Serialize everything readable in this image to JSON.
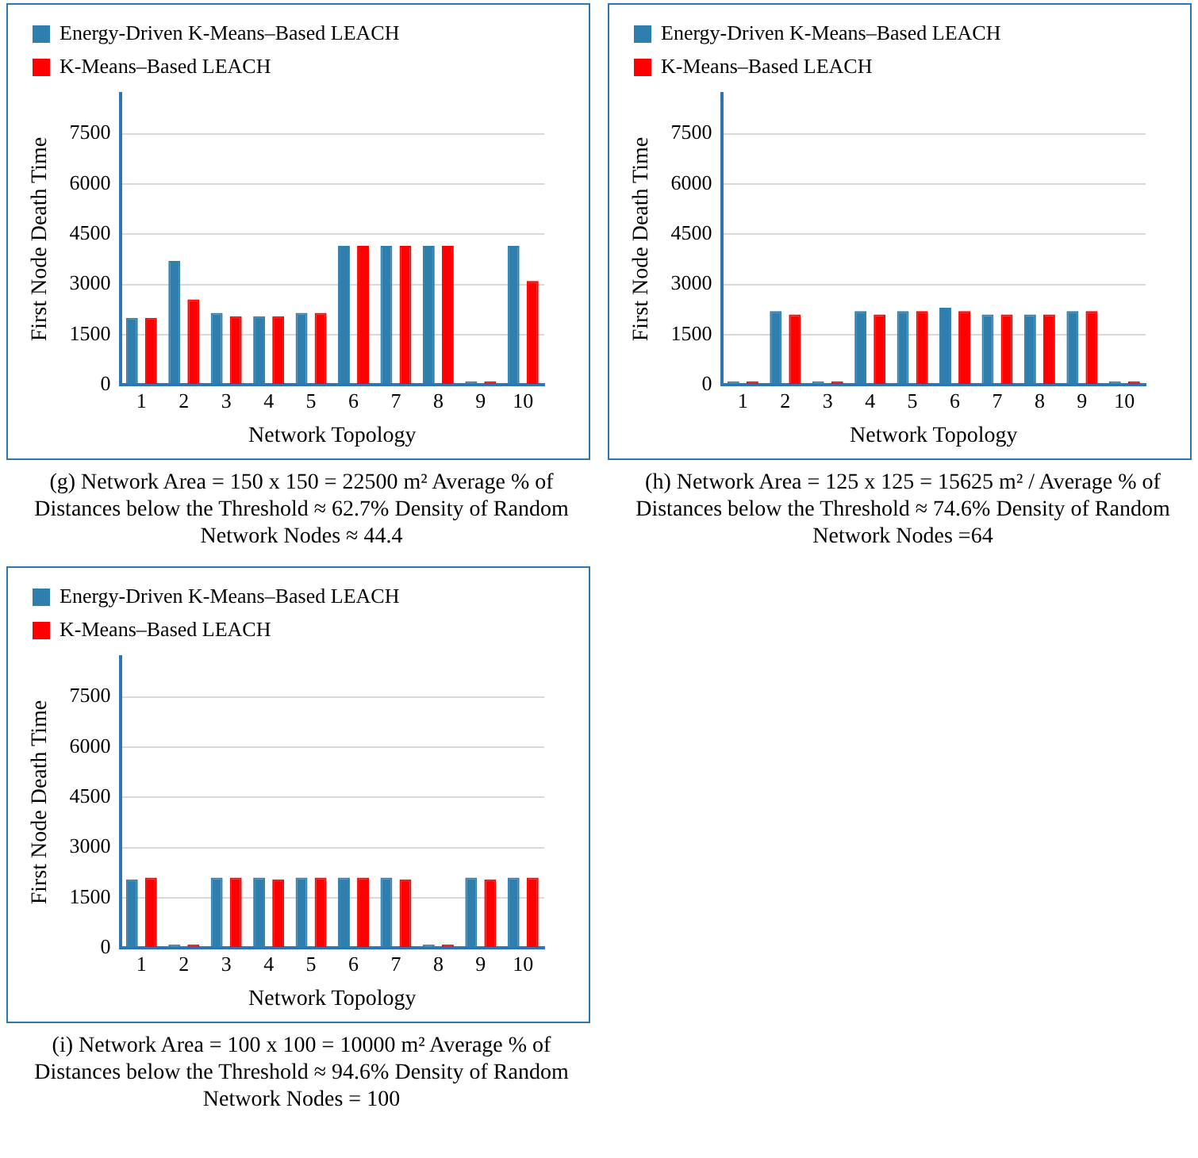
{
  "chart_data": [
    {
      "type": "bar",
      "xlabel": "Network Topology",
      "ylabel": "First Node Death Time",
      "categories": [
        "1",
        "2",
        "3",
        "4",
        "5",
        "6",
        "7",
        "8",
        "9",
        "10"
      ],
      "series": [
        {
          "name": "Energy-Driven K-Means–Based LEACH",
          "color": "#2e7fad",
          "values": [
            2000,
            3700,
            2150,
            2050,
            2150,
            4150,
            4150,
            4150,
            100,
            4150
          ]
        },
        {
          "name": "K-Means–Based LEACH",
          "color": "#ff0000",
          "values": [
            2000,
            2550,
            2050,
            2050,
            2150,
            4150,
            4150,
            4150,
            100,
            3100
          ]
        }
      ],
      "ylim": [
        0,
        8700
      ],
      "yticks": [
        0,
        1500,
        3000,
        4500,
        6000,
        7500
      ],
      "grid": "y",
      "legend": "top left",
      "annotations": [
        "(g) Network Area = 150 x 150 = 22500 m² Average % of Distances below the Threshold ≈ 62.7% Density of Random Network Nodes ≈ 44.4"
      ]
    },
    {
      "type": "bar",
      "xlabel": "Network Topology",
      "ylabel": "First Node Death Time",
      "categories": [
        "1",
        "2",
        "3",
        "4",
        "5",
        "6",
        "7",
        "8",
        "9",
        "10"
      ],
      "series": [
        {
          "name": "Energy-Driven K-Means–Based LEACH",
          "color": "#2e7fad",
          "values": [
            100,
            2200,
            100,
            2200,
            2200,
            2300,
            2100,
            2100,
            2200,
            100
          ]
        },
        {
          "name": "K-Means–Based LEACH",
          "color": "#ff0000",
          "values": [
            100,
            2100,
            100,
            2100,
            2200,
            2200,
            2100,
            2100,
            2200,
            100
          ]
        }
      ],
      "ylim": [
        0,
        8700
      ],
      "yticks": [
        0,
        1500,
        3000,
        4500,
        6000,
        7500
      ],
      "grid": "y",
      "legend": "top left",
      "annotations": [
        "(h) Network Area = 125 x 125 = 15625 m² / Average % of Distances below the Threshold ≈ 74.6% Density of Random Network Nodes =64"
      ]
    },
    {
      "type": "bar",
      "xlabel": "Network Topology",
      "ylabel": "First Node Death Time",
      "categories": [
        "1",
        "2",
        "3",
        "4",
        "5",
        "6",
        "7",
        "8",
        "9",
        "10"
      ],
      "series": [
        {
          "name": "Energy-Driven K-Means–Based LEACH",
          "color": "#2e7fad",
          "values": [
            2050,
            100,
            2100,
            2100,
            2100,
            2100,
            2100,
            100,
            2100,
            2100
          ]
        },
        {
          "name": "K-Means–Based LEACH",
          "color": "#ff0000",
          "values": [
            2100,
            100,
            2100,
            2050,
            2100,
            2100,
            2050,
            100,
            2050,
            2100
          ]
        }
      ],
      "ylim": [
        0,
        8700
      ],
      "yticks": [
        0,
        1500,
        3000,
        4500,
        6000,
        7500
      ],
      "grid": "y",
      "legend": "top left",
      "annotations": [
        "(i) Network Area = 100 x 100 = 10000 m² Average % of Distances below the Threshold ≈ 94.6% Density of Random Network Nodes = 100"
      ]
    }
  ]
}
